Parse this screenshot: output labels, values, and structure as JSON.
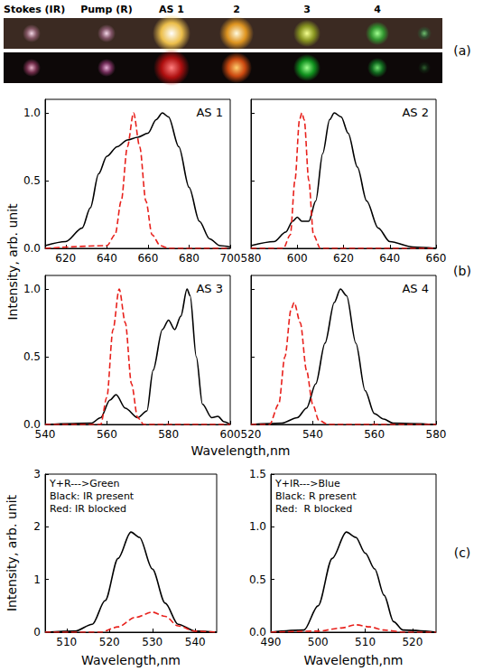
{
  "figure": {
    "photo": {
      "letter": "(a)",
      "labels": [
        "Stokes (IR)",
        "Pump (R)",
        "AS 1",
        "2",
        "3",
        "4"
      ]
    },
    "group_b": {
      "letter": "(b)",
      "xlabel": "Wavelength,nm",
      "ylabel": "Intensity, arb. unit"
    },
    "group_c": {
      "letter": "(c)"
    }
  },
  "chart_data": [
    {
      "type": "line",
      "title": "AS 1",
      "grid": false,
      "tick_labels": true,
      "xlim": [
        610,
        700
      ],
      "xticks": [
        620,
        640,
        660,
        680,
        700
      ],
      "ylim": [
        0,
        1.1
      ],
      "yticks": [
        {
          "value": 0,
          "label": "0.0"
        },
        {
          "value": 0.5,
          "label": "0.5"
        },
        {
          "value": 1,
          "label": "1.0"
        }
      ],
      "series": [
        {
          "color": "#000000",
          "line_style": "solid",
          "x": [
            610,
            620,
            628,
            632,
            636,
            640,
            645,
            650,
            655,
            660,
            664,
            667,
            670,
            675,
            680,
            685,
            690,
            695,
            700
          ],
          "values": [
            0.02,
            0.05,
            0.15,
            0.3,
            0.55,
            0.68,
            0.75,
            0.8,
            0.82,
            0.85,
            0.95,
            1.0,
            0.97,
            0.75,
            0.45,
            0.2,
            0.07,
            0.02,
            0.01
          ]
        },
        {
          "color": "#e8211c",
          "line_style": "dashed",
          "x": [
            610,
            640,
            644,
            647,
            650,
            653,
            656,
            659,
            662,
            666,
            670,
            700
          ],
          "values": [
            0,
            0.02,
            0.1,
            0.35,
            0.75,
            1.0,
            0.75,
            0.35,
            0.1,
            0.02,
            0,
            0
          ]
        }
      ]
    },
    {
      "type": "line",
      "title": "AS 2",
      "grid": false,
      "tick_labels": "x",
      "xlim": [
        580,
        660
      ],
      "xticks": [
        580,
        600,
        620,
        640,
        660
      ],
      "ylim": [
        0,
        1.1
      ],
      "yticks": [
        {
          "value": 0,
          "label": "0.0"
        },
        {
          "value": 0.5,
          "label": "0.5"
        },
        {
          "value": 1,
          "label": "1.0"
        }
      ],
      "series": [
        {
          "color": "#000000",
          "line_style": "solid",
          "x": [
            580,
            590,
            595,
            598,
            600,
            602,
            605,
            608,
            611,
            614,
            616,
            619,
            622,
            626,
            630,
            635,
            640,
            650,
            660
          ],
          "values": [
            0.02,
            0.05,
            0.12,
            0.2,
            0.23,
            0.2,
            0.2,
            0.35,
            0.7,
            0.95,
            1.0,
            0.97,
            0.85,
            0.6,
            0.35,
            0.15,
            0.05,
            0.01,
            0
          ]
        },
        {
          "color": "#e8211c",
          "line_style": "dashed",
          "x": [
            580,
            594,
            597,
            599,
            601,
            602,
            603,
            605,
            607,
            610,
            660
          ],
          "values": [
            0,
            0,
            0.1,
            0.5,
            0.95,
            1.0,
            0.95,
            0.5,
            0.1,
            0,
            0
          ]
        }
      ]
    },
    {
      "type": "line",
      "title": "AS 3",
      "grid": false,
      "tick_labels": true,
      "xlim": [
        540,
        600
      ],
      "xticks": [
        540,
        560,
        580,
        600
      ],
      "ylim": [
        0,
        1.1
      ],
      "yticks": [
        {
          "value": 0,
          "label": "0.0"
        },
        {
          "value": 0.5,
          "label": "0.5"
        },
        {
          "value": 1,
          "label": "1.0"
        }
      ],
      "series": [
        {
          "color": "#000000",
          "line_style": "solid",
          "x": [
            540,
            555,
            558,
            561,
            563,
            566,
            570,
            573,
            575,
            578,
            580,
            582,
            584,
            586,
            587,
            589,
            591,
            594,
            596,
            598,
            600
          ],
          "values": [
            0,
            0.01,
            0.05,
            0.18,
            0.22,
            0.12,
            0.05,
            0.1,
            0.4,
            0.7,
            0.77,
            0.7,
            0.8,
            1.0,
            0.95,
            0.5,
            0.15,
            0.05,
            0.06,
            0.02,
            0
          ]
        },
        {
          "color": "#e8211c",
          "line_style": "dashed",
          "x": [
            540,
            558,
            560,
            562,
            564,
            566,
            568,
            570,
            572,
            600
          ],
          "values": [
            0,
            0,
            0.2,
            0.7,
            1.0,
            0.75,
            0.3,
            0.05,
            0,
            0
          ]
        }
      ]
    },
    {
      "type": "line",
      "title": "AS 4",
      "grid": false,
      "tick_labels": "x",
      "xlim": [
        520,
        580
      ],
      "xticks": [
        520,
        540,
        560,
        580
      ],
      "ylim": [
        0,
        1.1
      ],
      "yticks": [
        {
          "value": 0,
          "label": "0.0"
        },
        {
          "value": 0.5,
          "label": "0.5"
        },
        {
          "value": 1,
          "label": "1.0"
        }
      ],
      "series": [
        {
          "color": "#000000",
          "line_style": "solid",
          "x": [
            520,
            530,
            535,
            538,
            541,
            544,
            547,
            549,
            551,
            554,
            557,
            560,
            563,
            566,
            580
          ],
          "values": [
            0,
            0.01,
            0.05,
            0.12,
            0.3,
            0.6,
            0.9,
            1.0,
            0.95,
            0.6,
            0.25,
            0.08,
            0.04,
            0.01,
            0
          ]
        },
        {
          "color": "#e8211c",
          "line_style": "dashed",
          "x": [
            520,
            526,
            529,
            531,
            533,
            534,
            536,
            538,
            540,
            542,
            545,
            580
          ],
          "values": [
            0,
            0,
            0.15,
            0.5,
            0.85,
            0.9,
            0.75,
            0.4,
            0.15,
            0.03,
            0,
            0
          ]
        }
      ]
    },
    {
      "type": "line",
      "annotations": [
        "Y+R--->Green",
        "Black: IR present",
        "Red: IR blocked"
      ],
      "xlabel": "Wavelength,nm",
      "ylabel": "Intensity, arb. unit",
      "grid": false,
      "tick_labels": true,
      "xlim": [
        505,
        545
      ],
      "xticks": [
        510,
        520,
        530,
        540
      ],
      "ylim": [
        0,
        3
      ],
      "yticks": [
        0,
        1,
        2,
        3
      ],
      "series": [
        {
          "color": "#000000",
          "line_style": "solid",
          "x": [
            505,
            512,
            516,
            519,
            522,
            525,
            527,
            530,
            533,
            536,
            540,
            545
          ],
          "values": [
            0,
            0.02,
            0.15,
            0.6,
            1.4,
            1.9,
            1.8,
            1.2,
            0.55,
            0.15,
            0.02,
            0
          ]
        },
        {
          "color": "#e8211c",
          "line_style": "dashed",
          "x": [
            505,
            518,
            522,
            526,
            530,
            533,
            536,
            540,
            545
          ],
          "values": [
            0,
            0,
            0.1,
            0.28,
            0.38,
            0.3,
            0.12,
            0.02,
            0
          ]
        }
      ]
    },
    {
      "type": "line",
      "annotations": [
        "Y+IR--->Blue",
        "Black: R present",
        "Red:  R blocked"
      ],
      "xlabel": "Wavelength,nm",
      "grid": false,
      "tick_labels": true,
      "xlim": [
        490,
        525
      ],
      "xticks": [
        490,
        500,
        510,
        520
      ],
      "ylim": [
        0,
        1.5
      ],
      "yticks": [
        {
          "value": 0,
          "label": "0.0"
        },
        {
          "value": 0.5,
          "label": "0.5"
        },
        {
          "value": 1,
          "label": "1.0"
        },
        {
          "value": 1.5,
          "label": "1.5"
        }
      ],
      "series": [
        {
          "color": "#000000",
          "line_style": "solid",
          "x": [
            490,
            497,
            500,
            503,
            506,
            508,
            510,
            512,
            514,
            516,
            518,
            525
          ],
          "values": [
            0,
            0.02,
            0.25,
            0.7,
            0.95,
            0.9,
            0.75,
            0.6,
            0.35,
            0.1,
            0.02,
            0
          ]
        },
        {
          "color": "#e8211c",
          "line_style": "dashed",
          "x": [
            490,
            500,
            505,
            508,
            511,
            514,
            518,
            525
          ],
          "values": [
            0,
            0.01,
            0.04,
            0.07,
            0.05,
            0.02,
            0,
            0
          ]
        }
      ]
    }
  ]
}
